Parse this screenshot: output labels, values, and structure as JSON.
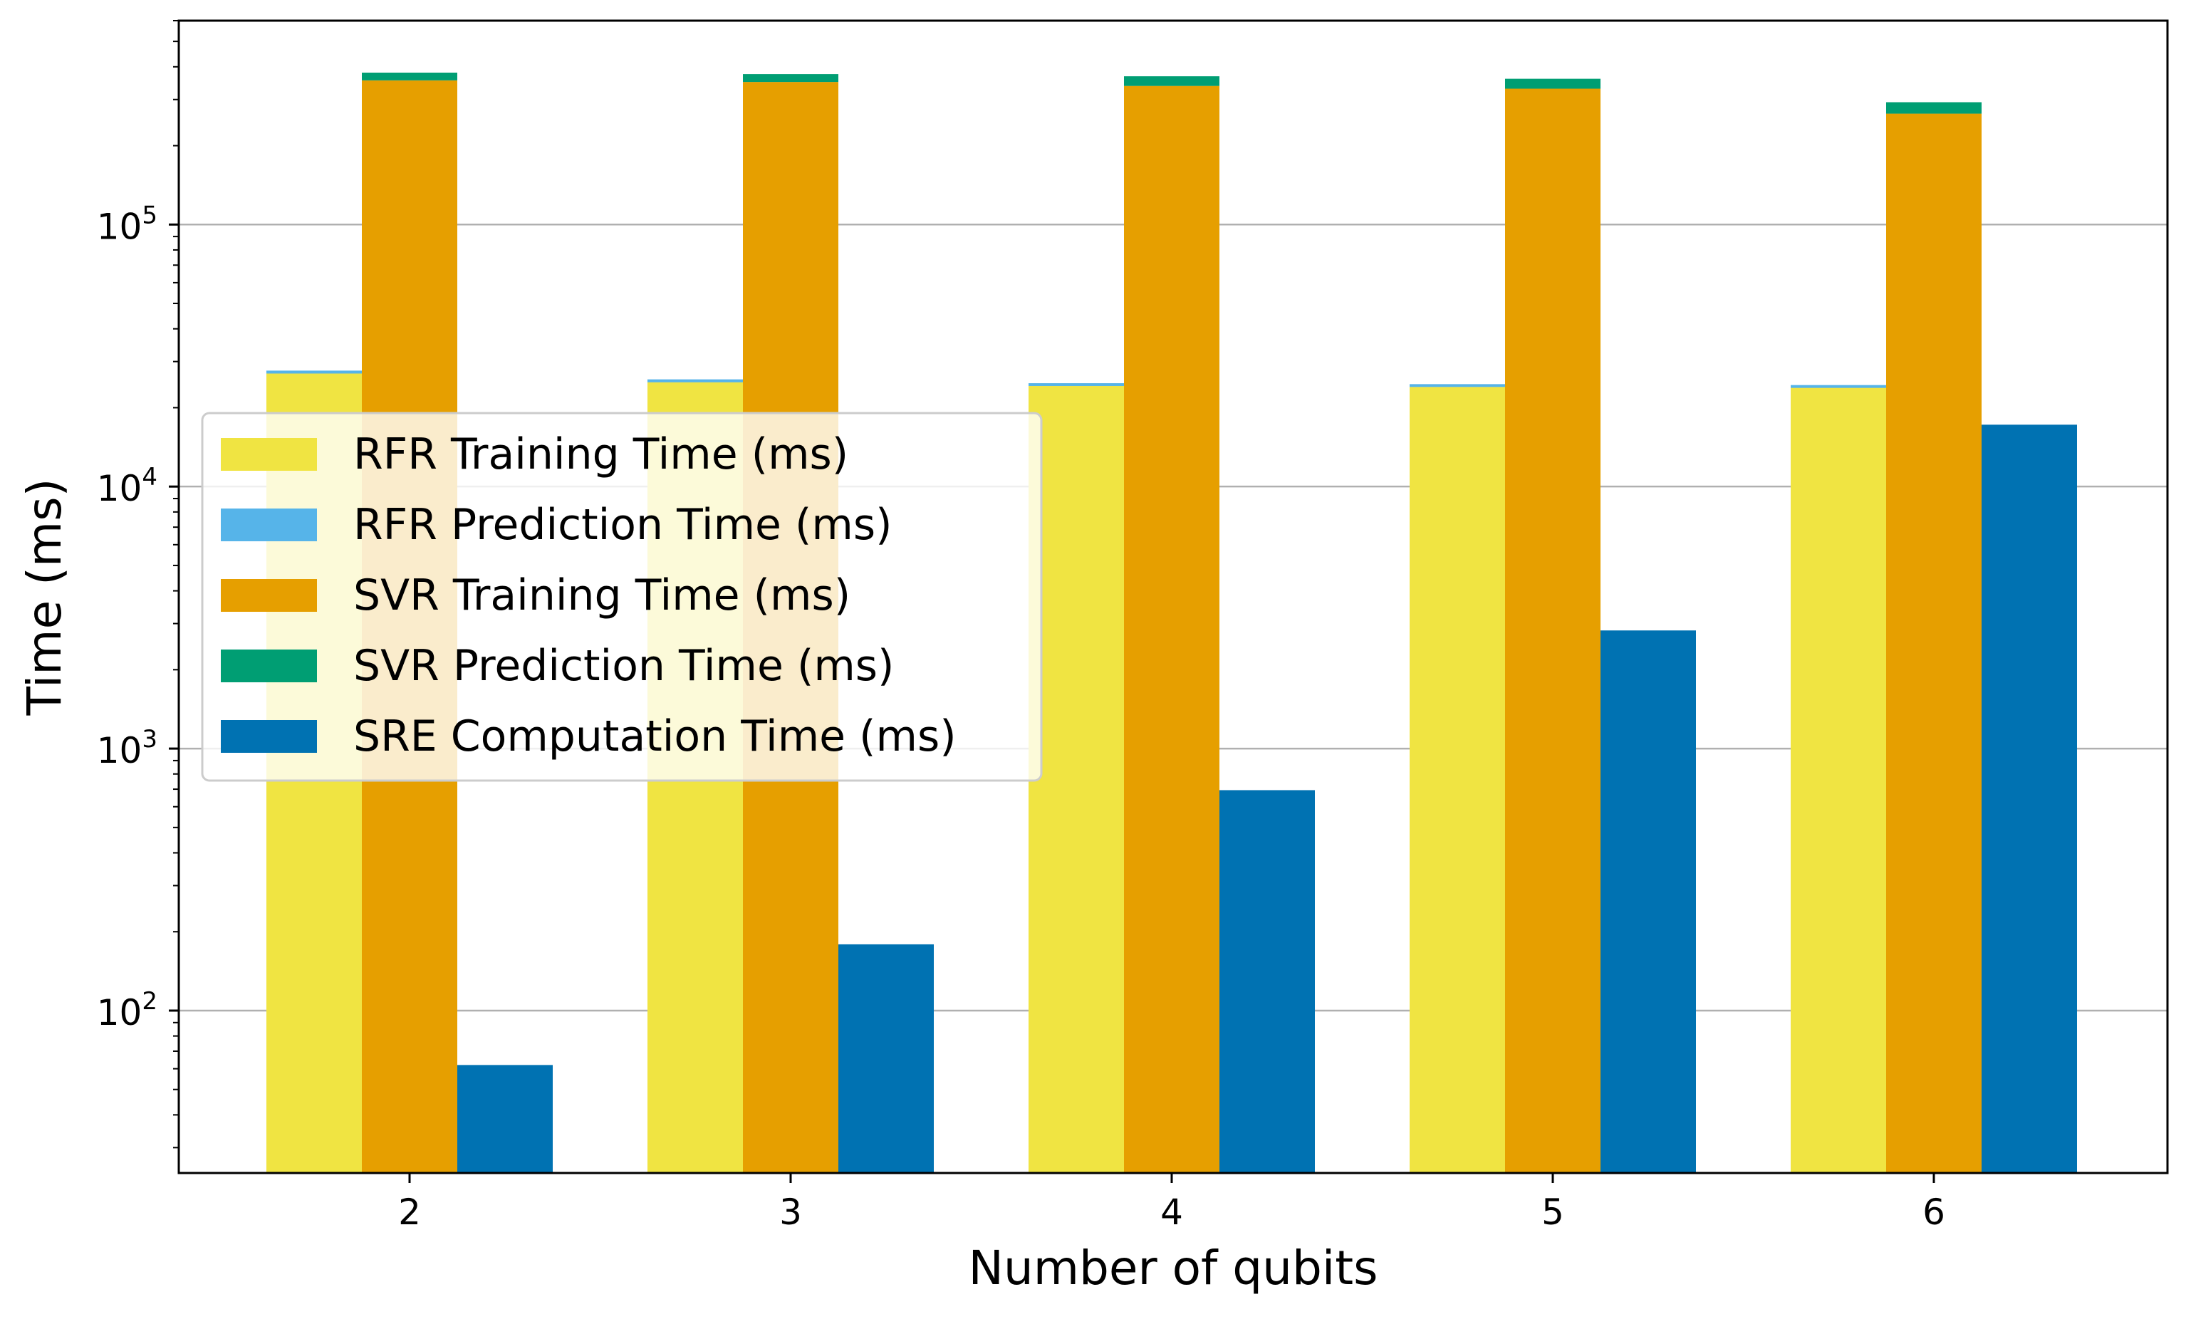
{
  "chart_data": {
    "type": "bar",
    "xlabel": "Number of qubits",
    "ylabel": "Time (ms)",
    "yscale": "log",
    "ylim": [
      24,
      600000
    ],
    "grid": "y-major",
    "legend_position": "center-left",
    "categories": [
      "2",
      "3",
      "4",
      "5",
      "6"
    ],
    "y_ticks": [
      {
        "base": "10",
        "exp": "2",
        "value": 100
      },
      {
        "base": "10",
        "exp": "3",
        "value": 1000
      },
      {
        "base": "10",
        "exp": "4",
        "value": 10000
      },
      {
        "base": "10",
        "exp": "5",
        "value": 100000
      }
    ],
    "series": [
      {
        "name": "RFR Training Time (ms)",
        "color": "#F0E442",
        "group": "RFR",
        "values": [
          27000,
          25000,
          24200,
          24000,
          23800
        ]
      },
      {
        "name": "RFR Prediction Time (ms)",
        "color": "#56B4E9",
        "group": "RFR",
        "stack_on": "RFR Training Time (ms)",
        "values": [
          700,
          650,
          600,
          600,
          600
        ]
      },
      {
        "name": "SVR Training Time (ms)",
        "color": "#E69F00",
        "group": "SVR",
        "values": [
          355000,
          350000,
          338000,
          330000,
          265000
        ]
      },
      {
        "name": "SVR Prediction Time (ms)",
        "color": "#009E73",
        "group": "SVR",
        "stack_on": "SVR Training Time (ms)",
        "values": [
          25000,
          25000,
          30000,
          30000,
          28000
        ]
      },
      {
        "name": "SRE Computation Time (ms)",
        "color": "#0072B2",
        "group": "SRE",
        "values": [
          38,
          155,
          670,
          2800,
          17200
        ]
      }
    ]
  }
}
